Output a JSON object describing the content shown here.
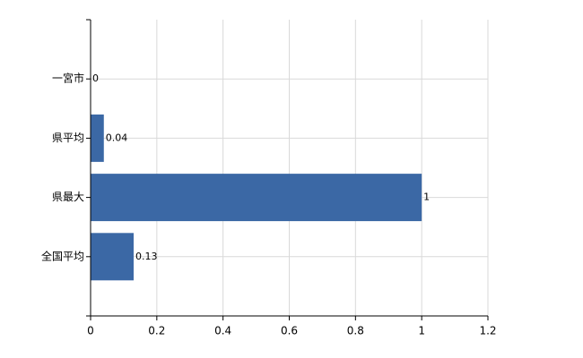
{
  "chart_data": {
    "type": "hbar",
    "categories": [
      "一宮市",
      "県平均",
      "県最大",
      "全国平均"
    ],
    "values": [
      0,
      0.04,
      1,
      0.13
    ],
    "color": "#3b68a5",
    "xlim": [
      0,
      1.2
    ],
    "xticks": [
      0,
      0.2,
      0.4,
      0.6,
      0.8,
      1,
      1.2
    ],
    "grid": true
  }
}
